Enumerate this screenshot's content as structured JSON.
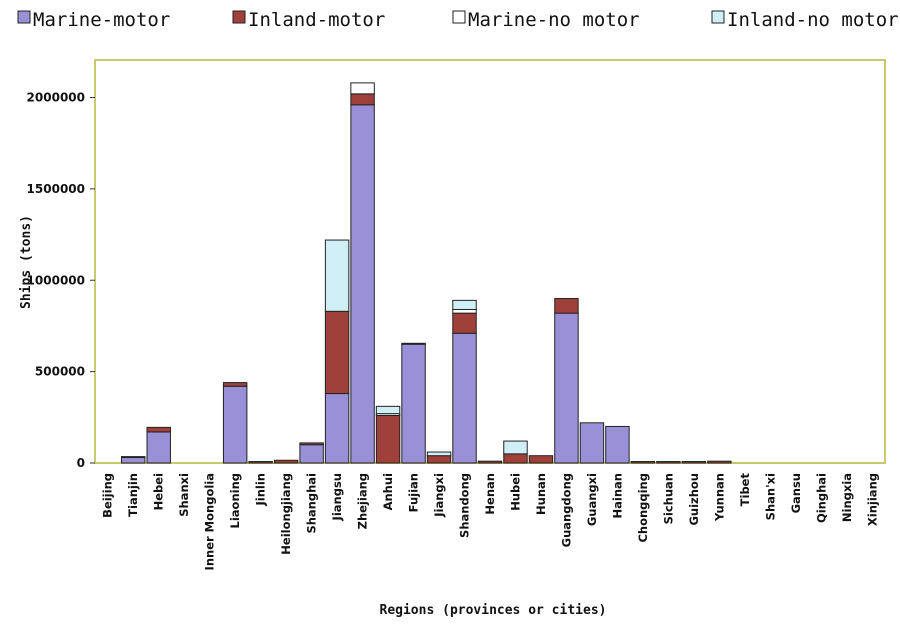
{
  "chart_data": {
    "type": "bar",
    "stacked": true,
    "title": "",
    "xlabel": "Regions (provinces or cities)",
    "ylabel": "Ships (tons)",
    "ylim": [
      0,
      2200000
    ],
    "yticks": [
      0,
      500000,
      1000000,
      1500000,
      2000000
    ],
    "ytick_labels": [
      "0",
      "500000",
      "1000000",
      "1500000",
      "2000000"
    ],
    "grid": false,
    "legend_position": "top",
    "categories": [
      "Beijing",
      "Tianjin",
      "Hebei",
      "Shanxi",
      "Inner Mongolia",
      "Liaoning",
      "Jinlin",
      "Heilongjiang",
      "Shanghai",
      "Jiangsu",
      "Zhejiang",
      "Anhui",
      "Fujian",
      "Jiangxi",
      "Shandong",
      "Henan",
      "Hubei",
      "Hunan",
      "Guangdong",
      "Guangxi",
      "Hainan",
      "Chongqing",
      "Sichuan",
      "Guizhou",
      "Yunnan",
      "Tibet",
      "Shan'xi",
      "Gansu",
      "Qinghai",
      "Ningxia",
      "Xinjiang"
    ],
    "series": [
      {
        "name": "Marine-motor",
        "color": "#9a90d8",
        "values": [
          0,
          30000,
          170000,
          0,
          0,
          420000,
          0,
          0,
          100000,
          380000,
          1960000,
          0,
          650000,
          0,
          710000,
          0,
          0,
          0,
          820000,
          220000,
          200000,
          0,
          0,
          0,
          0,
          0,
          0,
          0,
          0,
          0,
          0
        ]
      },
      {
        "name": "Inland-motor",
        "color": "#a0403a",
        "values": [
          0,
          5000,
          25000,
          0,
          0,
          20000,
          8000,
          15000,
          10000,
          450000,
          60000,
          260000,
          5000,
          40000,
          110000,
          10000,
          50000,
          40000,
          80000,
          0,
          0,
          8000,
          8000,
          8000,
          10000,
          0,
          0,
          0,
          0,
          0,
          0
        ]
      },
      {
        "name": "Marine-no motor",
        "color": "#ffffff",
        "values": [
          0,
          0,
          0,
          0,
          0,
          0,
          0,
          0,
          0,
          0,
          60000,
          10000,
          0,
          0,
          20000,
          0,
          0,
          0,
          0,
          0,
          0,
          0,
          0,
          0,
          0,
          0,
          0,
          0,
          0,
          0,
          0
        ]
      },
      {
        "name": "Inland-no motor",
        "color": "#cfeef6",
        "values": [
          0,
          0,
          0,
          0,
          0,
          0,
          0,
          0,
          0,
          390000,
          0,
          40000,
          0,
          20000,
          50000,
          0,
          70000,
          0,
          0,
          0,
          0,
          0,
          0,
          0,
          0,
          0,
          0,
          0,
          0,
          0,
          0
        ]
      }
    ]
  },
  "legend_items": [
    {
      "label": "Marine-motor",
      "color": "#9a90d8"
    },
    {
      "label": "Inland-motor",
      "color": "#a0403a"
    },
    {
      "label": "Marine-no motor",
      "color": "#ffffff"
    },
    {
      "label": "Inland-no motor",
      "color": "#cfeef6"
    }
  ],
  "colors": {
    "plot_border": "#c8c870",
    "bar_stroke": "#222222"
  }
}
